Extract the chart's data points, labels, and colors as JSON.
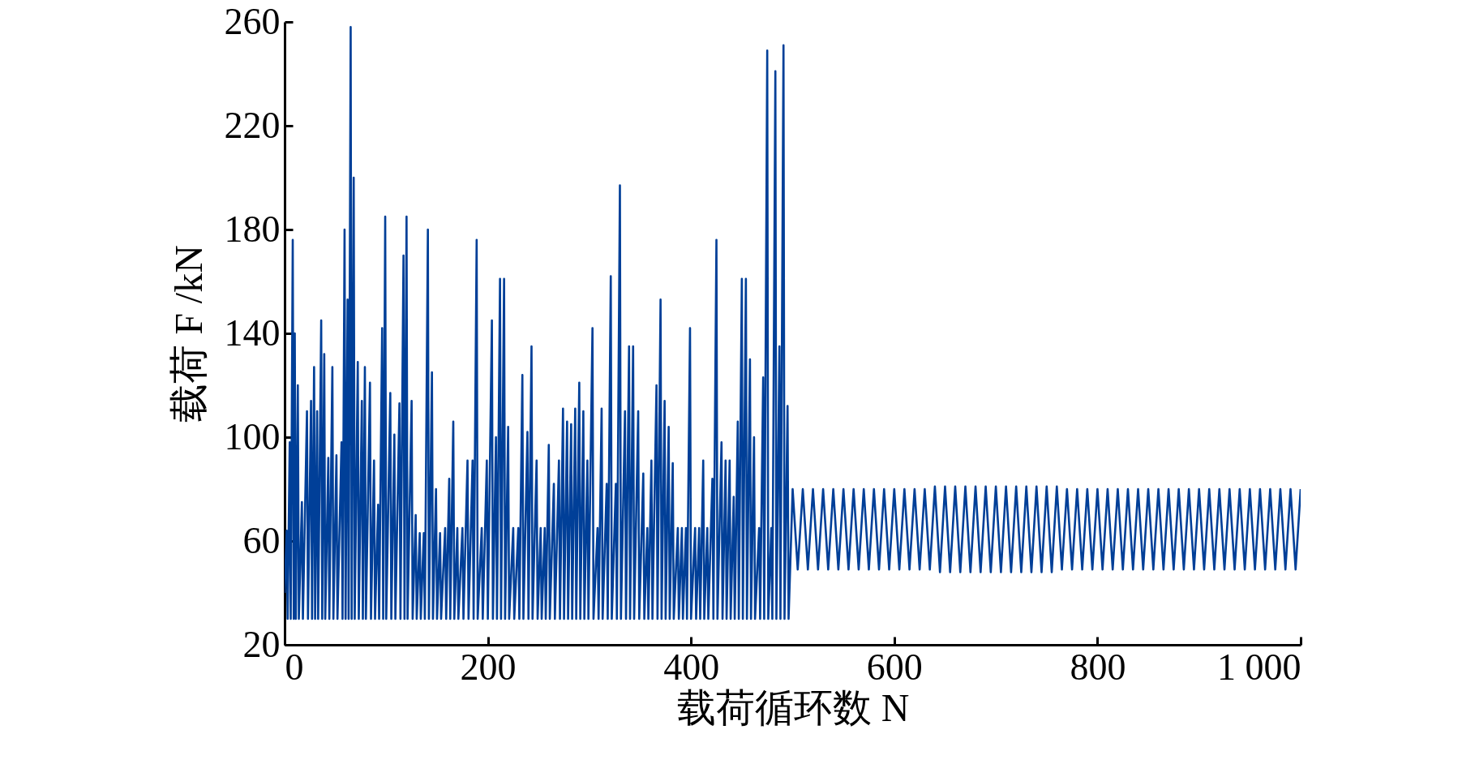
{
  "chart_data": {
    "type": "line",
    "xlabel": "载荷循环数 N",
    "ylabel": "载荷 F /kN",
    "xlim": [
      0,
      1000
    ],
    "xticks": [
      0,
      200,
      400,
      600,
      800,
      {
        "value": 1000,
        "label": "1 000"
      }
    ],
    "ylim": [
      20,
      260
    ],
    "yticks": [
      20,
      60,
      100,
      140,
      180,
      220,
      260
    ],
    "grid": false,
    "series": [
      {
        "color": "#003f98",
        "x": [
          0,
          2,
          3,
          5,
          6,
          8,
          9,
          10,
          11,
          13,
          14,
          17,
          18,
          22,
          23,
          26,
          27,
          29,
          30,
          32,
          33,
          36,
          37,
          39,
          40,
          43,
          44,
          47,
          48,
          51,
          52,
          56,
          57,
          59,
          60,
          62,
          63,
          65,
          66,
          68,
          69,
          72,
          73,
          76,
          77,
          79,
          80,
          84,
          85,
          88,
          89,
          92,
          93,
          96,
          97,
          99,
          100,
          104,
          105,
          108,
          109,
          113,
          114,
          117,
          118,
          120,
          121,
          125,
          126,
          129,
          130,
          133,
          134,
          137,
          138,
          141,
          142,
          145,
          146,
          149,
          150,
          153,
          154,
          158,
          159,
          162,
          163,
          166,
          167,
          170,
          171,
          175,
          176,
          180,
          181,
          185,
          186,
          189,
          190,
          194,
          195,
          199,
          200,
          204,
          205,
          208,
          209,
          212,
          213,
          216,
          217,
          220,
          221,
          225,
          226,
          230,
          231,
          234,
          235,
          239,
          240,
          243,
          244,
          248,
          249,
          252,
          253,
          256,
          257,
          260,
          261,
          265,
          266,
          270,
          271,
          274,
          275,
          278,
          279,
          282,
          283,
          286,
          287,
          290,
          291,
          294,
          295,
          298,
          299,
          303,
          304,
          308,
          309,
          312,
          313,
          317,
          318,
          321,
          322,
          326,
          327,
          330,
          331,
          335,
          336,
          339,
          340,
          343,
          344,
          348,
          349,
          353,
          354,
          357,
          358,
          361,
          362,
          366,
          367,
          370,
          371,
          374,
          375,
          378,
          379,
          382,
          383,
          387,
          388,
          391,
          392,
          395,
          396,
          399,
          400,
          404,
          405,
          408,
          409,
          412,
          413,
          416,
          417,
          421,
          422,
          425,
          426,
          430,
          431,
          434,
          435,
          438,
          439,
          442,
          443,
          446,
          447,
          450,
          451,
          454,
          455,
          458,
          459,
          462,
          463,
          467,
          468,
          471,
          472,
          475,
          476,
          479,
          480,
          483,
          484,
          487,
          488,
          491,
          492,
          495,
          496,
          500,
          505,
          510,
          515,
          520,
          525,
          530,
          535,
          540,
          545,
          550,
          555,
          560,
          565,
          570,
          575,
          580,
          585,
          590,
          595,
          600,
          605,
          610,
          615,
          620,
          625,
          630,
          635,
          640,
          645,
          650,
          655,
          660,
          665,
          670,
          675,
          680,
          685,
          690,
          695,
          700,
          705,
          710,
          715,
          720,
          725,
          730,
          735,
          740,
          745,
          750,
          755,
          760,
          765,
          770,
          775,
          780,
          785,
          790,
          795,
          800,
          805,
          810,
          815,
          820,
          825,
          830,
          835,
          840,
          845,
          850,
          855,
          860,
          865,
          870,
          875,
          880,
          885,
          890,
          895,
          900,
          905,
          910,
          915,
          920,
          925,
          930,
          935,
          940,
          945,
          950,
          955,
          960,
          965,
          970,
          975,
          980,
          985,
          990,
          995,
          1000
        ],
        "values": [
          40,
          64,
          30,
          98,
          30,
          176,
          30,
          140,
          30,
          120,
          30,
          75,
          30,
          110,
          30,
          114,
          30,
          127,
          30,
          110,
          30,
          145,
          30,
          132,
          30,
          92,
          30,
          127,
          30,
          93,
          30,
          98,
          30,
          180,
          30,
          153,
          30,
          258,
          30,
          200,
          30,
          129,
          30,
          114,
          30,
          127,
          30,
          121,
          30,
          91,
          30,
          74,
          30,
          142,
          30,
          185,
          30,
          117,
          30,
          101,
          30,
          113,
          30,
          170,
          30,
          185,
          30,
          114,
          30,
          70,
          30,
          63,
          30,
          63,
          30,
          180,
          30,
          125,
          30,
          80,
          30,
          63,
          30,
          65,
          30,
          84,
          30,
          106,
          30,
          65,
          30,
          65,
          30,
          91,
          30,
          91,
          30,
          176,
          30,
          65,
          30,
          91,
          30,
          145,
          30,
          100,
          30,
          161,
          30,
          161,
          30,
          104,
          30,
          65,
          30,
          65,
          30,
          124,
          30,
          102,
          30,
          135,
          30,
          91,
          30,
          65,
          30,
          65,
          30,
          97,
          30,
          82,
          30,
          91,
          30,
          111,
          30,
          106,
          30,
          105,
          30,
          111,
          30,
          121,
          30,
          110,
          30,
          91,
          30,
          142,
          30,
          65,
          30,
          111,
          30,
          82,
          30,
          162,
          30,
          82,
          30,
          197,
          30,
          110,
          30,
          135,
          30,
          135,
          30,
          110,
          30,
          86,
          30,
          65,
          30,
          91,
          30,
          120,
          30,
          153,
          30,
          114,
          30,
          104,
          30,
          90,
          30,
          65,
          30,
          65,
          30,
          65,
          30,
          142,
          30,
          65,
          30,
          65,
          30,
          91,
          30,
          65,
          30,
          84,
          30,
          176,
          30,
          98,
          30,
          91,
          30,
          91,
          30,
          77,
          30,
          106,
          30,
          161,
          30,
          161,
          30,
          130,
          30,
          100,
          30,
          65,
          30,
          123,
          30,
          249,
          30,
          65,
          30,
          241,
          30,
          135,
          30,
          251,
          30,
          112,
          30,
          80,
          49,
          80,
          49,
          80,
          49,
          80,
          49,
          80,
          49,
          80,
          49,
          80,
          49,
          80,
          49,
          80,
          49,
          80,
          49,
          80,
          49,
          80,
          49,
          80,
          49,
          80,
          49,
          81,
          48,
          81,
          48,
          81,
          48,
          81,
          48,
          81,
          48,
          81,
          48,
          81,
          48,
          81,
          48,
          81,
          48,
          81,
          48,
          81,
          48,
          81,
          48,
          81,
          49,
          80,
          49,
          80,
          49,
          80,
          49,
          80,
          49,
          80,
          49,
          80,
          49,
          80,
          49,
          80,
          49,
          80,
          49,
          80,
          49,
          80,
          49,
          80,
          49,
          80,
          49,
          80,
          49,
          80,
          49,
          80,
          49,
          80,
          49,
          80,
          49,
          80,
          49,
          80,
          49,
          80,
          49,
          80,
          49,
          80,
          49,
          80
        ]
      }
    ]
  }
}
